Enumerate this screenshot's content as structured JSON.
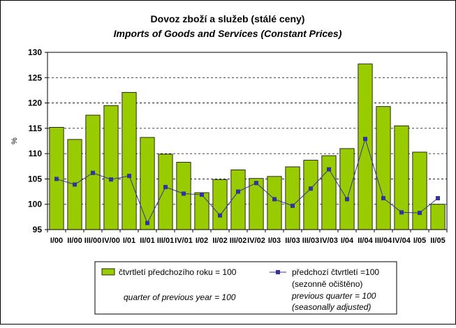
{
  "chart_data": {
    "type": "bar",
    "title": "Dovoz zboží a služeb (stálé ceny)",
    "subtitle": "Imports of Goods and Services (Constant Prices)",
    "ylabel": "%",
    "ylim": [
      95,
      130
    ],
    "yticks": [
      95,
      100,
      105,
      110,
      115,
      120,
      125,
      130
    ],
    "grid": true,
    "categories": [
      "I/00",
      "II/00",
      "III/00",
      "IV/00",
      "I/01",
      "II/01",
      "III/01",
      "IV/01",
      "I/02",
      "II/02",
      "III/02",
      "IV/02",
      "I/03",
      "II/03",
      "III/03",
      "IV/03",
      "I/04",
      "II/04",
      "III/04",
      "IV/04",
      "I/05",
      "II/05"
    ],
    "series": [
      {
        "type": "bar",
        "legend_cz": "čtvrtletí předchozího roku = 100",
        "legend_en": "quarter of previous year = 100",
        "color": "#99cc00",
        "values": [
          115.2,
          112.8,
          117.6,
          119.5,
          122.1,
          113.2,
          109.9,
          108.3,
          102.3,
          104.9,
          106.8,
          105.1,
          105.5,
          107.4,
          108.7,
          109.6,
          111.0,
          127.7,
          119.3,
          115.5,
          110.3,
          100.0
        ]
      },
      {
        "type": "line",
        "legend_cz": "předchozí čtvrtletí =100",
        "legend_cz2": "(sezonně očištěno)",
        "legend_en": "previous quarter = 100",
        "legend_en2": "(seasonally adjusted)",
        "color": "#333399",
        "values": [
          105.0,
          103.9,
          106.2,
          104.9,
          105.6,
          96.3,
          103.4,
          102.1,
          101.9,
          97.8,
          102.5,
          104.2,
          101.0,
          99.7,
          103.1,
          106.9,
          101.0,
          112.9,
          101.2,
          98.4,
          98.3,
          101.2
        ]
      }
    ]
  }
}
